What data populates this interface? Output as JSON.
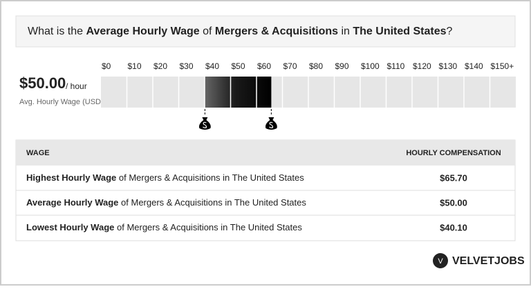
{
  "chart_data": {
    "type": "range",
    "title_parts": [
      "What is the ",
      "Average Hourly Wage",
      " of ",
      "Mergers & Acquisitions",
      " in ",
      "The United States",
      "?"
    ],
    "headline": {
      "value": "$50.00",
      "unit": "/ hour",
      "caption": "Avg. Hourly Wage (USD)"
    },
    "xlim": [
      0,
      160
    ],
    "xticks": [
      {
        "value": 0,
        "label": "$0"
      },
      {
        "value": 10,
        "label": "$10"
      },
      {
        "value": 20,
        "label": "$20"
      },
      {
        "value": 30,
        "label": "$30"
      },
      {
        "value": 40,
        "label": "$40"
      },
      {
        "value": 50,
        "label": "$50"
      },
      {
        "value": 60,
        "label": "$60"
      },
      {
        "value": 70,
        "label": "$70"
      },
      {
        "value": 80,
        "label": "$80"
      },
      {
        "value": 90,
        "label": "$90"
      },
      {
        "value": 100,
        "label": "$100"
      },
      {
        "value": 110,
        "label": "$110"
      },
      {
        "value": 120,
        "label": "$120"
      },
      {
        "value": 130,
        "label": "$130"
      },
      {
        "value": 140,
        "label": "$140"
      },
      {
        "value": 150,
        "label": "$150+"
      }
    ],
    "low": 40.1,
    "high": 65.7,
    "table": {
      "header": [
        "WAGE",
        "HOURLY COMPENSATION"
      ],
      "rows": [
        [
          "Highest Hourly Wage",
          " of Mergers & Acquisitions in The United States",
          "$65.70"
        ],
        [
          "Average Hourly Wage",
          " of Mergers & Acquisitions in The United States",
          "$50.00"
        ],
        [
          "Lowest Hourly Wage",
          " of Mergers & Acquisitions in The United States",
          "$40.10"
        ]
      ]
    },
    "logo": {
      "mark": "V",
      "name": "VELVETJOBS"
    }
  }
}
